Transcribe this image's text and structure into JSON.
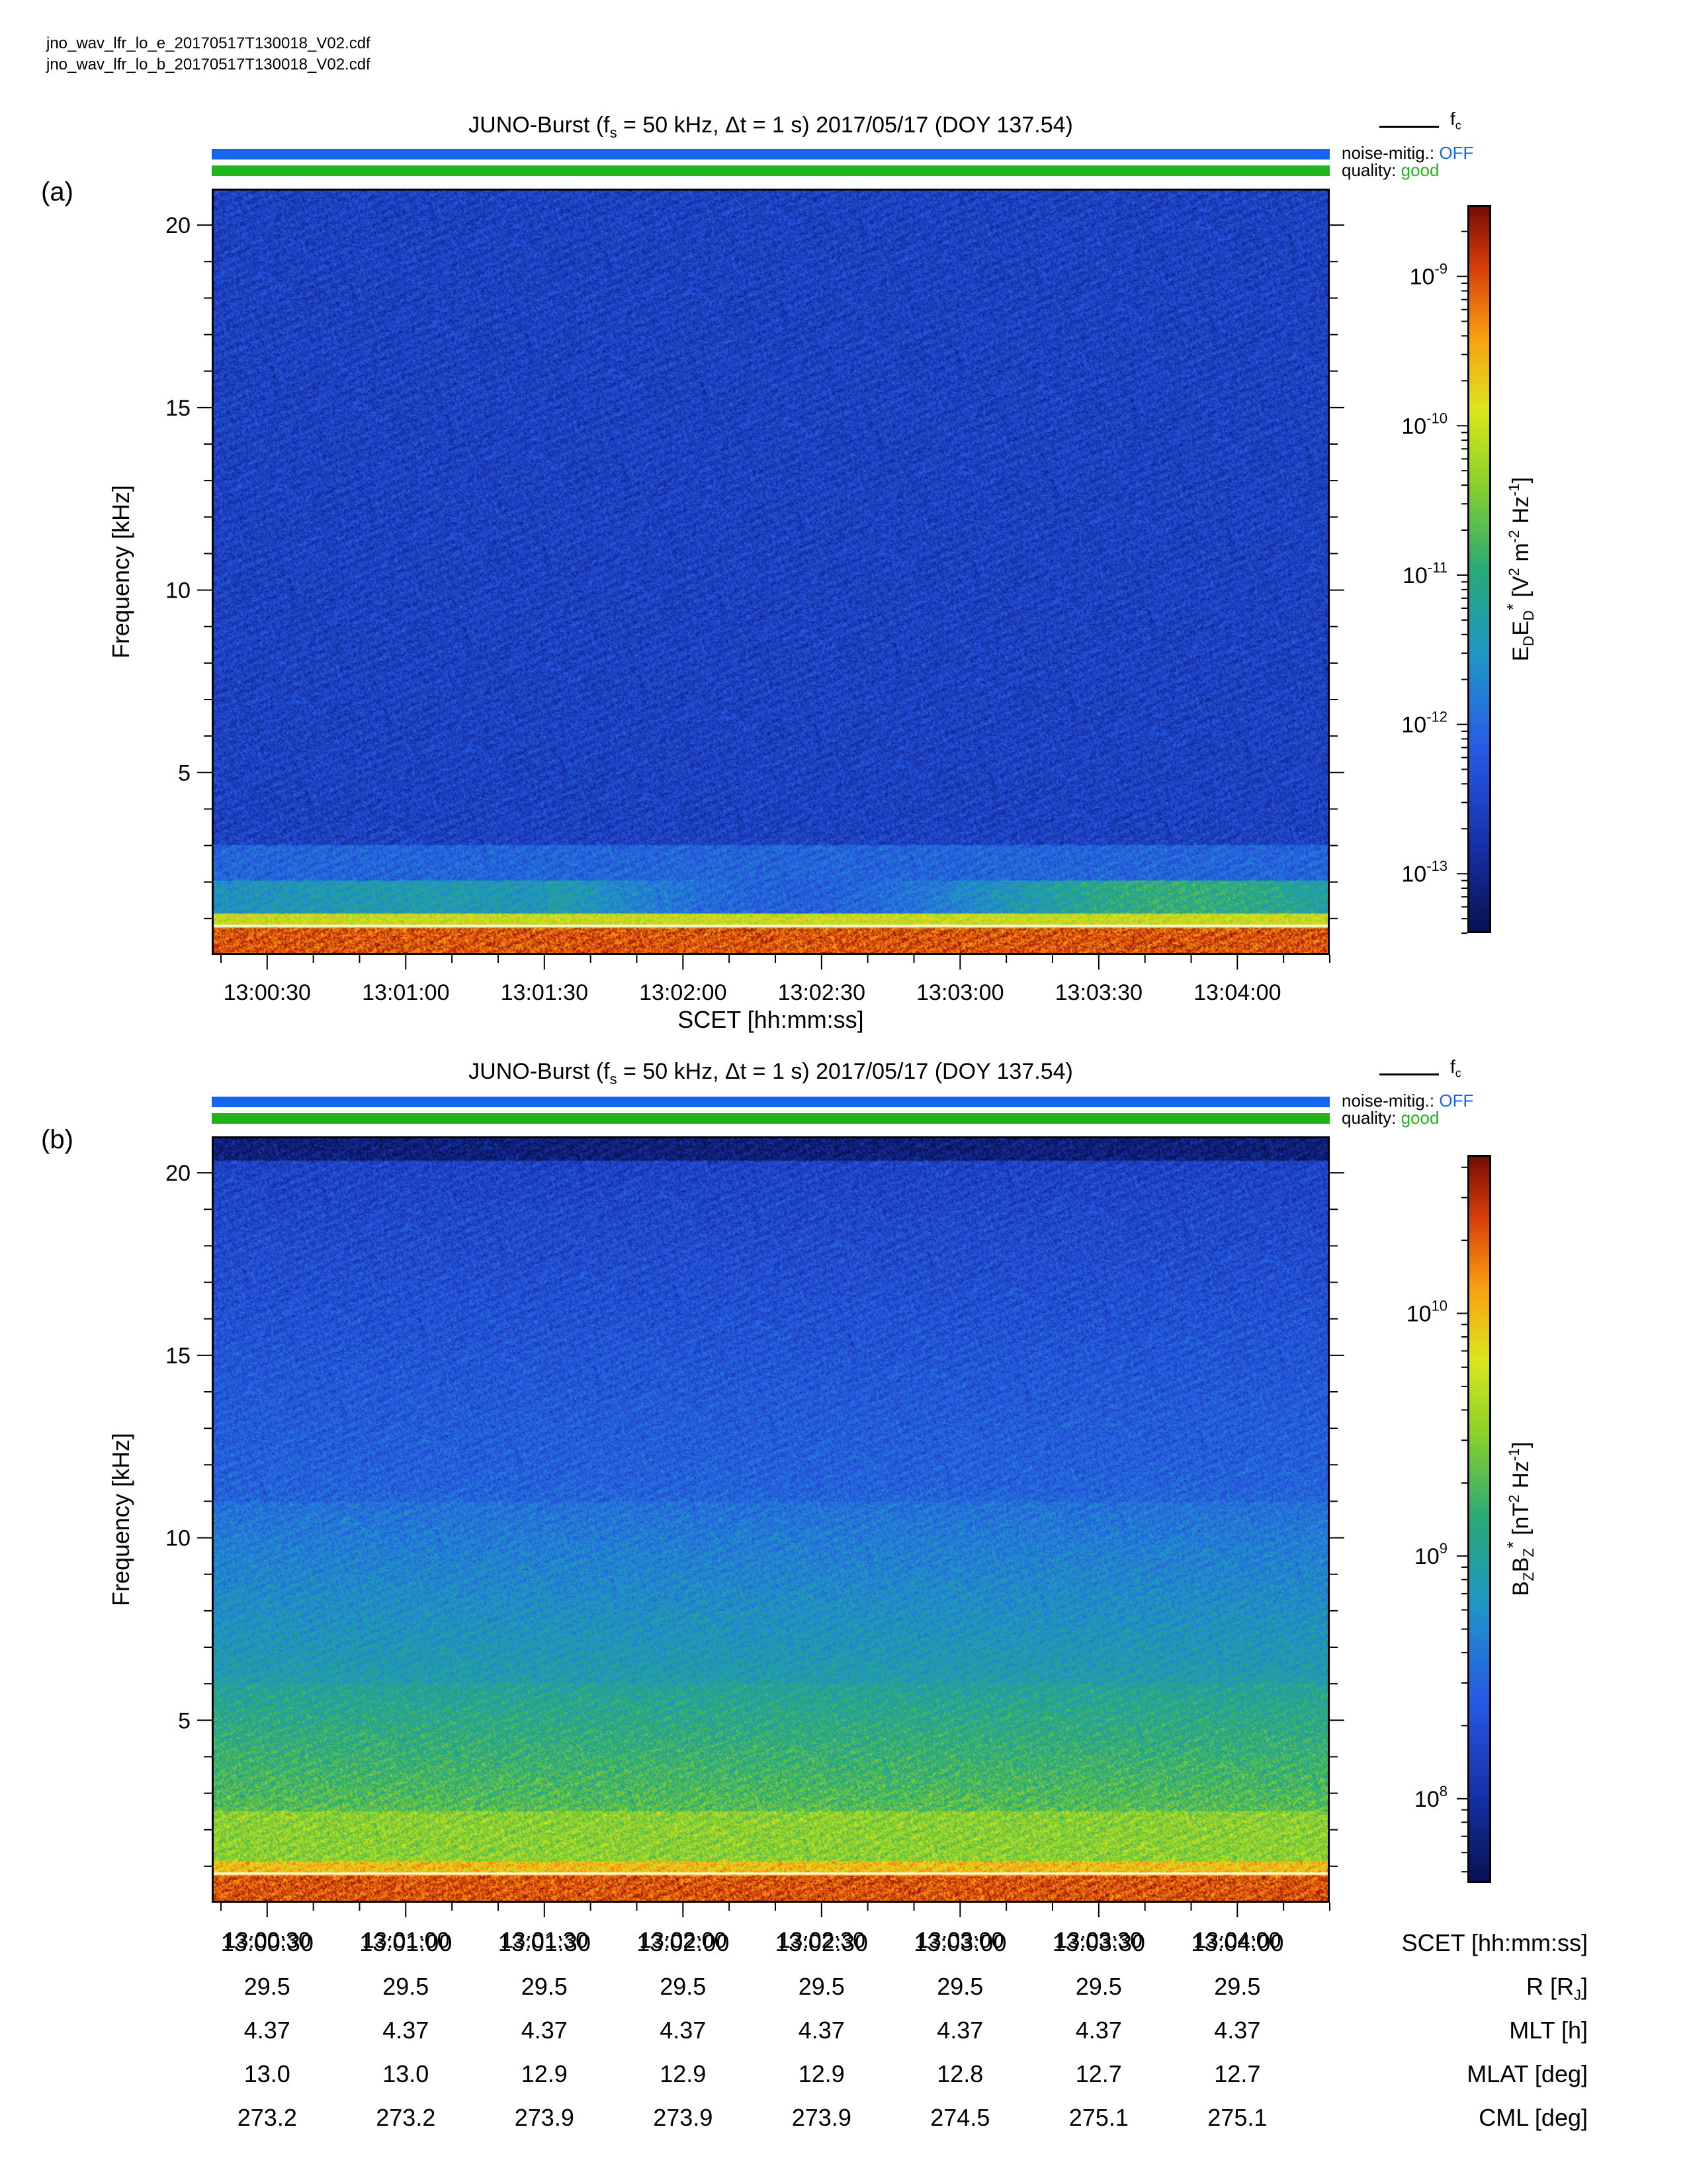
{
  "files": [
    "jno_wav_lfr_lo_e_20170517T130018_V02.cdf",
    "jno_wav_lfr_lo_b_20170517T130018_V02.cdf"
  ],
  "legend": {
    "label": "f",
    "sub": "c"
  },
  "status": {
    "noise_label": "noise-mitig.:",
    "noise_value": "OFF",
    "quality_label": "quality:",
    "quality_value": "good"
  },
  "colors": {
    "blue_bar": "#1565ee",
    "green_bar": "#22b31a",
    "fc_line": "#ffffff"
  },
  "chart_data": [
    {
      "type": "heatmap",
      "panel_label": "(a)",
      "title": "JUNO-Burst (fs = 50 kHz, Δt = 1 s)  2017/05/17 (DOY 137.54)",
      "title_parts": {
        "pre": "JUNO-Burst (f",
        "sub": "s",
        "post": " = 50 kHz, Δt = 1 s)  2017/05/17 (DOY 137.54)"
      },
      "xlabel": "SCET [hh:mm:ss]",
      "ylabel": "Frequency [kHz]",
      "ylim": [
        0,
        21
      ],
      "yticks": [
        5,
        10,
        15,
        20
      ],
      "xticks": [
        "13:00:30",
        "13:01:00",
        "13:01:30",
        "13:02:00",
        "13:02:30",
        "13:03:00",
        "13:03:30",
        "13:04:00"
      ],
      "xlim": [
        "13:00:18",
        "13:04:20"
      ],
      "fc_khz": 0.8,
      "colorbar": {
        "label": "E_D E_D* [V² m⁻² Hz⁻¹]",
        "label_parts": {
          "a": "E",
          "a_sub": "D",
          "b": "E",
          "b_sub": "D",
          "b_sup": "*",
          "unit": " [V",
          "u1": "2",
          "u2": " m",
          "u3": "-2",
          "u4": " Hz",
          "u5": "-1",
          "u6": "]"
        },
        "scale": "log",
        "range": [
          4e-14,
          3e-09
        ],
        "ticks": [
          {
            "base": "10",
            "exp": "-9",
            "value": 1e-09
          },
          {
            "base": "10",
            "exp": "-10",
            "value": 1e-10
          },
          {
            "base": "10",
            "exp": "-11",
            "value": 1e-11
          },
          {
            "base": "10",
            "exp": "-12",
            "value": 1e-12
          },
          {
            "base": "10",
            "exp": "-13",
            "value": 1e-13
          }
        ]
      }
    },
    {
      "type": "heatmap",
      "panel_label": "(b)",
      "title": "JUNO-Burst (fs = 50 kHz, Δt = 1 s)  2017/05/17 (DOY 137.54)",
      "title_parts": {
        "pre": "JUNO-Burst (f",
        "sub": "s",
        "post": " = 50 kHz, Δt = 1 s)  2017/05/17 (DOY 137.54)"
      },
      "xlabel": "SCET [hh:mm:ss]",
      "ylabel": "Frequency [kHz]",
      "ylim": [
        0,
        21
      ],
      "yticks": [
        5,
        10,
        15,
        20
      ],
      "xticks": [
        "13:00:30",
        "13:01:00",
        "13:01:30",
        "13:02:00",
        "13:02:30",
        "13:03:00",
        "13:03:30",
        "13:04:00"
      ],
      "xlim": [
        "13:00:18",
        "13:04:20"
      ],
      "fc_khz": 0.8,
      "colorbar": {
        "label": "B_Z B_Z* [nT² Hz⁻¹]",
        "label_parts": {
          "a": "B",
          "a_sub": "Z",
          "b": "B",
          "b_sub": "Z",
          "b_sup": "*",
          "unit": " [nT",
          "u1": "2",
          "u2": " Hz",
          "u3": "-1",
          "u4": "]"
        },
        "scale": "log",
        "range": [
          45000000.0,
          45000000000.0
        ],
        "ticks": [
          {
            "base": "10",
            "exp": "10",
            "value": 10000000000.0
          },
          {
            "base": "10",
            "exp": "9",
            "value": 1000000000.0
          },
          {
            "base": "10",
            "exp": "8",
            "value": 100000000.0
          }
        ]
      }
    }
  ],
  "ephemeris": {
    "rows": [
      {
        "label": "SCET [hh:mm:ss]",
        "values": [
          "13:00:30",
          "13:01:00",
          "13:01:30",
          "13:02:00",
          "13:02:30",
          "13:03:00",
          "13:03:30",
          "13:04:00"
        ]
      },
      {
        "label": "R [R",
        "label_sub": "J",
        "label_end": "]",
        "values": [
          "29.5",
          "29.5",
          "29.5",
          "29.5",
          "29.5",
          "29.5",
          "29.5",
          "29.5"
        ]
      },
      {
        "label": "MLT [h]",
        "values": [
          "4.37",
          "4.37",
          "4.37",
          "4.37",
          "4.37",
          "4.37",
          "4.37",
          "4.37"
        ]
      },
      {
        "label": "MLAT [deg]",
        "values": [
          "13.0",
          "13.0",
          "12.9",
          "12.9",
          "12.9",
          "12.8",
          "12.7",
          "12.7"
        ]
      },
      {
        "label": "CML [deg]",
        "values": [
          "273.2",
          "273.2",
          "273.9",
          "273.9",
          "273.9",
          "274.5",
          "275.1",
          "275.1"
        ]
      }
    ]
  }
}
